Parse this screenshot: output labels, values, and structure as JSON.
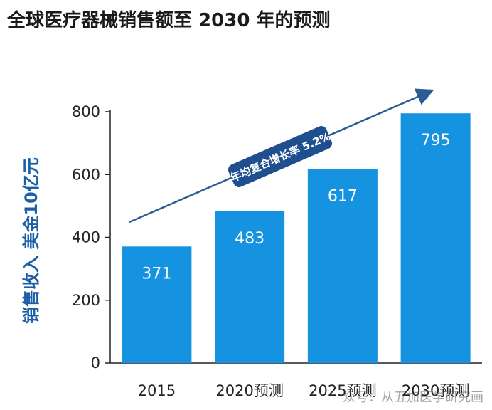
{
  "chart_data": {
    "type": "bar",
    "title": "全球医疗器械销售额至 2030 年的预测",
    "ylabel": "销售收入 美金10亿元",
    "categories": [
      "2015",
      "2020预测",
      "2025预测",
      "2030预测"
    ],
    "values": [
      371,
      483,
      617,
      795
    ],
    "data_labels": [
      "371",
      "483",
      "617",
      "795"
    ],
    "ylim": [
      0,
      800
    ],
    "yticks": [
      0,
      200,
      400,
      600,
      800
    ],
    "grid": false,
    "annotation": "年均复合增长率 5.2%",
    "colors": {
      "bar": "#1593e0",
      "bar_label": "#ffffff",
      "axis_label": "#1b5ea8",
      "annotation_bg": "#1f4f8f",
      "trend_arrow": "#2b5d94",
      "axis": "#222222"
    }
  },
  "watermark": "众号：从五加医学研究画"
}
